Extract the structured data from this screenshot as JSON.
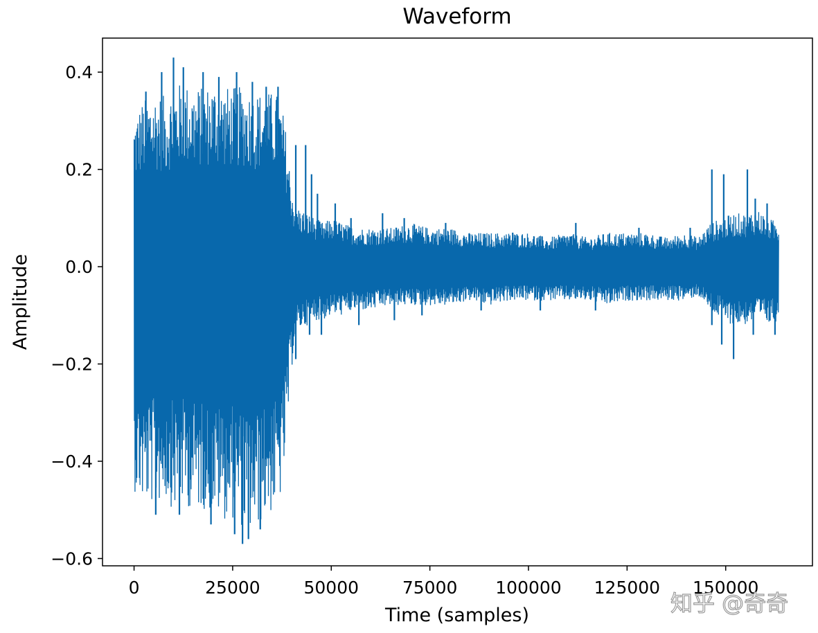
{
  "chart_data": {
    "type": "line",
    "title": "Waveform",
    "xlabel": "Time (samples)",
    "ylabel": "Amplitude",
    "xlim": [
      -8000,
      172000
    ],
    "ylim": [
      -0.615,
      0.47
    ],
    "xticks": [
      0,
      25000,
      50000,
      75000,
      100000,
      125000,
      150000
    ],
    "xtick_labels": [
      "0",
      "25000",
      "50000",
      "75000",
      "100000",
      "125000",
      "150000"
    ],
    "yticks": [
      -0.6,
      -0.4,
      -0.2,
      0.0,
      0.2,
      0.4
    ],
    "ytick_labels": [
      "−0.6",
      "−0.4",
      "−0.2",
      "0.0",
      "0.2",
      "0.4"
    ],
    "grid": false,
    "series": [
      {
        "color": "#0868ac",
        "envelope_x": [
          0,
          2000,
          5000,
          8000,
          10000,
          12000,
          15000,
          18000,
          20000,
          23000,
          25000,
          28000,
          30000,
          33000,
          36000,
          37500,
          38500,
          39500,
          40500,
          42000,
          44000,
          46000,
          48000,
          50000,
          53000,
          56000,
          60000,
          65000,
          70000,
          75000,
          80000,
          85000,
          90000,
          95000,
          100000,
          105000,
          110000,
          115000,
          120000,
          125000,
          130000,
          135000,
          140000,
          143000,
          146000,
          149000,
          152000,
          155000,
          158000,
          161000,
          163500
        ],
        "envelope_max": [
          0.31,
          0.34,
          0.36,
          0.35,
          0.37,
          0.38,
          0.37,
          0.37,
          0.38,
          0.37,
          0.37,
          0.37,
          0.36,
          0.36,
          0.36,
          0.33,
          0.28,
          0.2,
          0.14,
          0.12,
          0.11,
          0.1,
          0.09,
          0.1,
          0.09,
          0.08,
          0.08,
          0.08,
          0.09,
          0.08,
          0.08,
          0.07,
          0.07,
          0.07,
          0.07,
          0.06,
          0.07,
          0.06,
          0.07,
          0.07,
          0.07,
          0.06,
          0.07,
          0.06,
          0.09,
          0.1,
          0.11,
          0.11,
          0.12,
          0.1,
          0.09
        ],
        "envelope_min": [
          -0.46,
          -0.49,
          -0.49,
          -0.48,
          -0.5,
          -0.49,
          -0.5,
          -0.5,
          -0.51,
          -0.52,
          -0.52,
          -0.54,
          -0.55,
          -0.52,
          -0.5,
          -0.47,
          -0.38,
          -0.26,
          -0.16,
          -0.13,
          -0.12,
          -0.11,
          -0.11,
          -0.1,
          -0.1,
          -0.09,
          -0.09,
          -0.08,
          -0.08,
          -0.08,
          -0.08,
          -0.07,
          -0.08,
          -0.07,
          -0.07,
          -0.07,
          -0.07,
          -0.07,
          -0.08,
          -0.07,
          -0.07,
          -0.07,
          -0.07,
          -0.06,
          -0.09,
          -0.11,
          -0.12,
          -0.12,
          -0.11,
          -0.12,
          -0.11
        ],
        "peaks": [
          {
            "x": 3000,
            "y": 0.36
          },
          {
            "x": 7000,
            "y": 0.4
          },
          {
            "x": 10000,
            "y": 0.43
          },
          {
            "x": 12500,
            "y": 0.41
          },
          {
            "x": 17500,
            "y": 0.4
          },
          {
            "x": 21500,
            "y": 0.39
          },
          {
            "x": 26000,
            "y": 0.4
          },
          {
            "x": 30000,
            "y": 0.38
          },
          {
            "x": 33500,
            "y": 0.37
          },
          {
            "x": 36500,
            "y": 0.37
          },
          {
            "x": 41000,
            "y": 0.25
          },
          {
            "x": 43500,
            "y": 0.25
          },
          {
            "x": 45000,
            "y": 0.19
          },
          {
            "x": 46500,
            "y": 0.15
          },
          {
            "x": 51000,
            "y": 0.13
          },
          {
            "x": 55000,
            "y": 0.1
          },
          {
            "x": 63000,
            "y": 0.11
          },
          {
            "x": 68500,
            "y": 0.1
          },
          {
            "x": 79000,
            "y": 0.09
          },
          {
            "x": 96000,
            "y": 0.07
          },
          {
            "x": 112000,
            "y": 0.09
          },
          {
            "x": 128000,
            "y": 0.08
          },
          {
            "x": 141000,
            "y": 0.08
          },
          {
            "x": 146500,
            "y": 0.2
          },
          {
            "x": 149500,
            "y": 0.19
          },
          {
            "x": 155500,
            "y": 0.2
          },
          {
            "x": 157500,
            "y": 0.14
          },
          {
            "x": 160500,
            "y": 0.13
          }
        ],
        "troughs": [
          {
            "x": 5500,
            "y": -0.51
          },
          {
            "x": 11500,
            "y": -0.51
          },
          {
            "x": 19500,
            "y": -0.53
          },
          {
            "x": 25500,
            "y": -0.55
          },
          {
            "x": 27500,
            "y": -0.57
          },
          {
            "x": 29000,
            "y": -0.56
          },
          {
            "x": 32000,
            "y": -0.54
          },
          {
            "x": 41000,
            "y": -0.19
          },
          {
            "x": 44500,
            "y": -0.14
          },
          {
            "x": 47500,
            "y": -0.14
          },
          {
            "x": 57000,
            "y": -0.12
          },
          {
            "x": 66000,
            "y": -0.11
          },
          {
            "x": 73000,
            "y": -0.1
          },
          {
            "x": 88000,
            "y": -0.09
          },
          {
            "x": 103000,
            "y": -0.09
          },
          {
            "x": 117000,
            "y": -0.09
          },
          {
            "x": 146500,
            "y": -0.12
          },
          {
            "x": 149000,
            "y": -0.16
          },
          {
            "x": 152000,
            "y": -0.19
          },
          {
            "x": 157000,
            "y": -0.14
          },
          {
            "x": 162500,
            "y": -0.14
          }
        ]
      }
    ]
  },
  "watermark": "知乎 @奇奇"
}
